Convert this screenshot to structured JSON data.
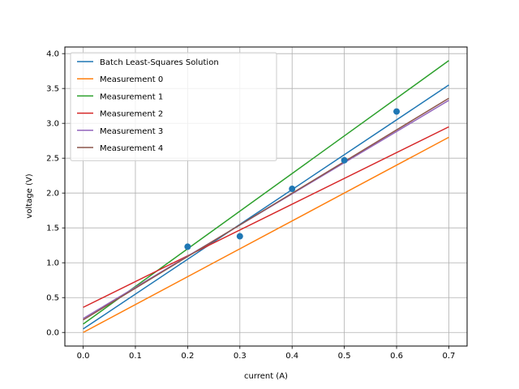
{
  "chart_data": {
    "type": "line",
    "title": "",
    "xlabel": "current (A)",
    "ylabel": "voltage (V)",
    "xlim": [
      -0.035,
      0.735
    ],
    "ylim": [
      -0.195,
      4.095
    ],
    "xticks": [
      0.0,
      0.1,
      0.2,
      0.3,
      0.4,
      0.5,
      0.6,
      0.7
    ],
    "xtick_labels": [
      "0.0",
      "0.1",
      "0.2",
      "0.3",
      "0.4",
      "0.5",
      "0.6",
      "0.7"
    ],
    "yticks": [
      0.0,
      0.5,
      1.0,
      1.5,
      2.0,
      2.5,
      3.0,
      3.5,
      4.0
    ],
    "ytick_labels": [
      "0.0",
      "0.5",
      "1.0",
      "1.5",
      "2.0",
      "2.5",
      "3.0",
      "3.5",
      "4.0"
    ],
    "grid": true,
    "legend_position": "top-left",
    "scatter": {
      "x": [
        0.2,
        0.3,
        0.4,
        0.5,
        0.6
      ],
      "y": [
        1.23,
        1.38,
        2.06,
        2.47,
        3.17
      ],
      "color": "#1f77b4"
    },
    "series": [
      {
        "name": "Batch Least-Squares Solution",
        "x": [
          0.0,
          0.7
        ],
        "y": [
          0.05,
          3.55
        ],
        "color": "#1f77b4"
      },
      {
        "name": "Measurement 0",
        "x": [
          0.0,
          0.7
        ],
        "y": [
          0.0,
          2.8
        ],
        "color": "#ff7f0e"
      },
      {
        "name": "Measurement 1",
        "x": [
          0.0,
          0.7
        ],
        "y": [
          0.12,
          3.9
        ],
        "color": "#2ca02c"
      },
      {
        "name": "Measurement 2",
        "x": [
          0.0,
          0.7
        ],
        "y": [
          0.36,
          2.95
        ],
        "color": "#d62728"
      },
      {
        "name": "Measurement 3",
        "x": [
          0.0,
          0.7
        ],
        "y": [
          0.2,
          3.33
        ],
        "color": "#9467bd"
      },
      {
        "name": "Measurement 4",
        "x": [
          0.0,
          0.7
        ],
        "y": [
          0.18,
          3.36
        ],
        "color": "#8c564b"
      }
    ]
  }
}
